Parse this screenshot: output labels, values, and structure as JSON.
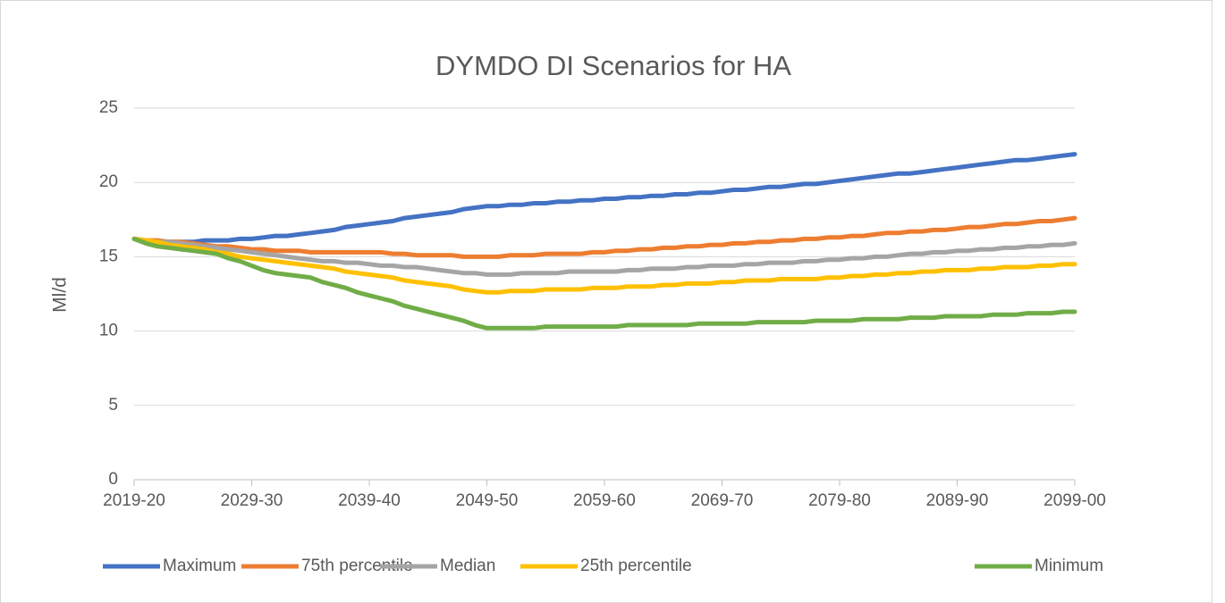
{
  "chart_data": {
    "type": "line",
    "title": "DYMDO DI Scenarios for HA",
    "y_label": "Ml/d",
    "categories": [
      "2019-20",
      null,
      null,
      null,
      null,
      null,
      null,
      null,
      null,
      null,
      "2029-30",
      null,
      null,
      null,
      null,
      null,
      null,
      null,
      null,
      null,
      "2039-40",
      null,
      null,
      null,
      null,
      null,
      null,
      null,
      null,
      null,
      "2049-50",
      null,
      null,
      null,
      null,
      null,
      null,
      null,
      null,
      null,
      "2059-60",
      null,
      null,
      null,
      null,
      null,
      null,
      null,
      null,
      null,
      "2069-70",
      null,
      null,
      null,
      null,
      null,
      null,
      null,
      null,
      null,
      "2079-80",
      null,
      null,
      null,
      null,
      null,
      null,
      null,
      null,
      null,
      "2089-90",
      null,
      null,
      null,
      null,
      null,
      null,
      null,
      null,
      null,
      "2099-00"
    ],
    "series": [
      {
        "name": "Maximum",
        "color": "#4472c4",
        "values": [
          16.2,
          16.1,
          16.0,
          16.0,
          16.0,
          16.0,
          16.1,
          16.1,
          16.1,
          16.2,
          16.2,
          16.3,
          16.4,
          16.4,
          16.5,
          16.6,
          16.7,
          16.8,
          17.0,
          17.1,
          17.2,
          17.3,
          17.4,
          17.6,
          17.7,
          17.8,
          17.9,
          18.0,
          18.2,
          18.3,
          18.4,
          18.4,
          18.5,
          18.5,
          18.6,
          18.6,
          18.7,
          18.7,
          18.8,
          18.8,
          18.9,
          18.9,
          19.0,
          19.0,
          19.1,
          19.1,
          19.2,
          19.2,
          19.3,
          19.3,
          19.4,
          19.5,
          19.5,
          19.6,
          19.7,
          19.7,
          19.8,
          19.9,
          19.9,
          20.0,
          20.1,
          20.2,
          20.3,
          20.4,
          20.5,
          20.6,
          20.6,
          20.7,
          20.8,
          20.9,
          21.0,
          21.1,
          21.2,
          21.3,
          21.4,
          21.5,
          21.5,
          21.6,
          21.7,
          21.8,
          21.9
        ]
      },
      {
        "name": "75th percentile",
        "color": "#ed7d31",
        "values": [
          16.2,
          16.1,
          16.1,
          16.0,
          16.0,
          15.9,
          15.8,
          15.7,
          15.7,
          15.6,
          15.5,
          15.5,
          15.4,
          15.4,
          15.4,
          15.3,
          15.3,
          15.3,
          15.3,
          15.3,
          15.3,
          15.3,
          15.2,
          15.2,
          15.1,
          15.1,
          15.1,
          15.1,
          15.0,
          15.0,
          15.0,
          15.0,
          15.1,
          15.1,
          15.1,
          15.2,
          15.2,
          15.2,
          15.2,
          15.3,
          15.3,
          15.4,
          15.4,
          15.5,
          15.5,
          15.6,
          15.6,
          15.7,
          15.7,
          15.8,
          15.8,
          15.9,
          15.9,
          16.0,
          16.0,
          16.1,
          16.1,
          16.2,
          16.2,
          16.3,
          16.3,
          16.4,
          16.4,
          16.5,
          16.6,
          16.6,
          16.7,
          16.7,
          16.8,
          16.8,
          16.9,
          17.0,
          17.0,
          17.1,
          17.2,
          17.2,
          17.3,
          17.4,
          17.4,
          17.5,
          17.6
        ]
      },
      {
        "name": "Median",
        "color": "#a5a5a5",
        "values": [
          16.2,
          16.1,
          16.0,
          16.0,
          15.9,
          15.8,
          15.7,
          15.6,
          15.5,
          15.4,
          15.3,
          15.2,
          15.1,
          15.0,
          14.9,
          14.8,
          14.7,
          14.7,
          14.6,
          14.6,
          14.5,
          14.4,
          14.4,
          14.3,
          14.3,
          14.2,
          14.1,
          14.0,
          13.9,
          13.9,
          13.8,
          13.8,
          13.8,
          13.9,
          13.9,
          13.9,
          13.9,
          14.0,
          14.0,
          14.0,
          14.0,
          14.0,
          14.1,
          14.1,
          14.2,
          14.2,
          14.2,
          14.3,
          14.3,
          14.4,
          14.4,
          14.4,
          14.5,
          14.5,
          14.6,
          14.6,
          14.6,
          14.7,
          14.7,
          14.8,
          14.8,
          14.9,
          14.9,
          15.0,
          15.0,
          15.1,
          15.2,
          15.2,
          15.3,
          15.3,
          15.4,
          15.4,
          15.5,
          15.5,
          15.6,
          15.6,
          15.7,
          15.7,
          15.8,
          15.8,
          15.9
        ]
      },
      {
        "name": "25th percentile",
        "color": "#ffc000",
        "values": [
          16.2,
          16.1,
          16.0,
          15.8,
          15.7,
          15.6,
          15.5,
          15.3,
          15.2,
          15.0,
          14.9,
          14.8,
          14.7,
          14.6,
          14.5,
          14.4,
          14.3,
          14.2,
          14.0,
          13.9,
          13.8,
          13.7,
          13.6,
          13.4,
          13.3,
          13.2,
          13.1,
          13.0,
          12.8,
          12.7,
          12.6,
          12.6,
          12.7,
          12.7,
          12.7,
          12.8,
          12.8,
          12.8,
          12.8,
          12.9,
          12.9,
          12.9,
          13.0,
          13.0,
          13.0,
          13.1,
          13.1,
          13.2,
          13.2,
          13.2,
          13.3,
          13.3,
          13.4,
          13.4,
          13.4,
          13.5,
          13.5,
          13.5,
          13.5,
          13.6,
          13.6,
          13.7,
          13.7,
          13.8,
          13.8,
          13.9,
          13.9,
          14.0,
          14.0,
          14.1,
          14.1,
          14.1,
          14.2,
          14.2,
          14.3,
          14.3,
          14.3,
          14.4,
          14.4,
          14.5,
          14.5
        ]
      },
      {
        "name": "Minimum",
        "color": "#70ad47",
        "values": [
          16.2,
          15.9,
          15.7,
          15.6,
          15.5,
          15.4,
          15.3,
          15.2,
          14.9,
          14.7,
          14.4,
          14.1,
          13.9,
          13.8,
          13.7,
          13.6,
          13.3,
          13.1,
          12.9,
          12.6,
          12.4,
          12.2,
          12.0,
          11.7,
          11.5,
          11.3,
          11.1,
          10.9,
          10.7,
          10.4,
          10.2,
          10.2,
          10.2,
          10.2,
          10.2,
          10.3,
          10.3,
          10.3,
          10.3,
          10.3,
          10.3,
          10.3,
          10.4,
          10.4,
          10.4,
          10.4,
          10.4,
          10.4,
          10.5,
          10.5,
          10.5,
          10.5,
          10.5,
          10.6,
          10.6,
          10.6,
          10.6,
          10.6,
          10.7,
          10.7,
          10.7,
          10.7,
          10.8,
          10.8,
          10.8,
          10.8,
          10.9,
          10.9,
          10.9,
          11.0,
          11.0,
          11.0,
          11.0,
          11.1,
          11.1,
          11.1,
          11.2,
          11.2,
          11.2,
          11.3,
          11.3
        ]
      }
    ],
    "ylim": [
      0,
      25
    ],
    "yticks": [
      0,
      5,
      10,
      15,
      20,
      25
    ],
    "grid": true,
    "legend": "bottom"
  }
}
